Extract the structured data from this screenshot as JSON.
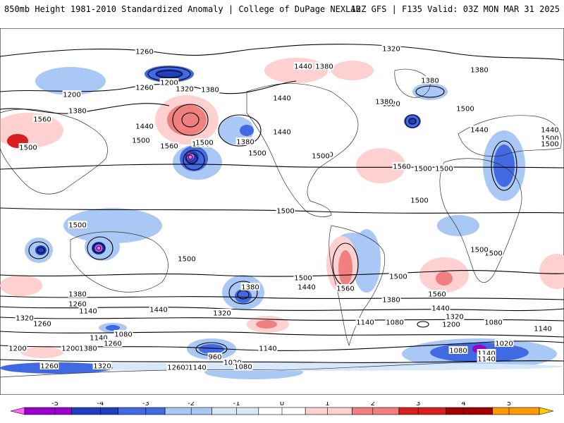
{
  "header": {
    "left_title": "850mb Height 1981-2010 Standardized Anomaly | College of DuPage NEXLAB",
    "right_title": "12Z GFS | F135 Valid: 03Z MON MAR 31 2025"
  },
  "colorbar": {
    "ticks": [
      "-5",
      "-4",
      "-3",
      "-2",
      "-1",
      "0",
      "1",
      "2",
      "3",
      "4",
      "5"
    ],
    "colors": [
      "#ff66ff",
      "#9900cc",
      "#1f3fbf",
      "#4169e1",
      "#a9c8f5",
      "#d8e8fb",
      "#ffffff",
      "#ffd0d0",
      "#f08080",
      "#d62020",
      "#a00000",
      "#ff9900",
      "#ffcc00"
    ]
  },
  "contour_labels": [
    {
      "text": "1260"
    },
    {
      "text": "1320"
    },
    {
      "text": "1200"
    },
    {
      "text": "1260"
    },
    {
      "text": "1200"
    },
    {
      "text": "1320"
    },
    {
      "text": "1380"
    },
    {
      "text": "1440"
    },
    {
      "text": "1380"
    },
    {
      "text": "1380"
    },
    {
      "text": "1380"
    },
    {
      "text": "1320"
    },
    {
      "text": "1380"
    },
    {
      "text": "1380"
    },
    {
      "text": "1560"
    },
    {
      "text": "1440"
    },
    {
      "text": "1440"
    },
    {
      "text": "1500"
    },
    {
      "text": "1440"
    },
    {
      "text": "1500"
    },
    {
      "text": "1560"
    },
    {
      "text": "1500"
    },
    {
      "text": "1500"
    },
    {
      "text": "1380"
    },
    {
      "text": "1440"
    },
    {
      "text": "1500"
    },
    {
      "text": "1500"
    },
    {
      "text": "1500"
    },
    {
      "text": "1560"
    },
    {
      "text": "1500"
    },
    {
      "text": "1440"
    },
    {
      "text": "1440"
    },
    {
      "text": "1500"
    },
    {
      "text": "1500"
    },
    {
      "text": "1500"
    },
    {
      "text": "1500"
    },
    {
      "text": "1500"
    },
    {
      "text": "1500"
    },
    {
      "text": "1500"
    },
    {
      "text": "1500"
    },
    {
      "text": "1500"
    },
    {
      "text": "1380"
    },
    {
      "text": "1440"
    },
    {
      "text": "1560"
    },
    {
      "text": "1500"
    },
    {
      "text": "1560"
    },
    {
      "text": "1500"
    },
    {
      "text": "1380"
    },
    {
      "text": "1260"
    },
    {
      "text": "1140"
    },
    {
      "text": "1440"
    },
    {
      "text": "1320"
    },
    {
      "text": "1380"
    },
    {
      "text": "1440"
    },
    {
      "text": "1320"
    },
    {
      "text": "1260"
    },
    {
      "text": "1200"
    },
    {
      "text": "1320"
    },
    {
      "text": "1200"
    },
    {
      "text": "1140"
    },
    {
      "text": "1080"
    },
    {
      "text": "1140"
    },
    {
      "text": "1260"
    },
    {
      "text": "1080"
    },
    {
      "text": "1140"
    },
    {
      "text": "1200"
    },
    {
      "text": "1380"
    },
    {
      "text": "1080"
    },
    {
      "text": "960"
    },
    {
      "text": "1020"
    },
    {
      "text": "1140"
    },
    {
      "text": "1080"
    },
    {
      "text": "1020"
    },
    {
      "text": "1140"
    },
    {
      "text": "1080"
    },
    {
      "text": "1140"
    },
    {
      "text": "1260"
    },
    {
      "text": "1320"
    },
    {
      "text": "1200"
    },
    {
      "text": "1140"
    },
    {
      "text": "1260"
    },
    {
      "text": "1140"
    }
  ]
}
